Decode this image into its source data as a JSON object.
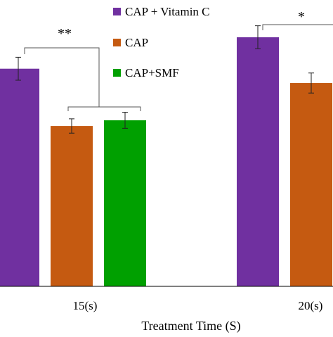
{
  "chart_data": {
    "type": "bar",
    "categories": [
      "15(s)",
      "20(s)"
    ],
    "series": [
      {
        "name": "CAP + Vitamin C",
        "color": "#7030a0",
        "values": [
          0.76,
          0.87
        ]
      },
      {
        "name": "CAP",
        "color": "#c55a11",
        "values": [
          0.56,
          0.71
        ]
      },
      {
        "name": "CAP+SMF",
        "color": "#00a000",
        "values": [
          0.58,
          null
        ]
      }
    ],
    "errors": [
      [
        0.04,
        0.04
      ],
      [
        0.025,
        0.035
      ],
      [
        0.028,
        null
      ]
    ],
    "xlabel": "Treatment Time (S)",
    "ylabel": "",
    "ylim": [
      0,
      1
    ],
    "legend": "top-center",
    "grid": false,
    "annotations": [
      {
        "text": "**",
        "category": "15(s)"
      },
      {
        "text": "*",
        "category": "20(s)"
      }
    ]
  }
}
